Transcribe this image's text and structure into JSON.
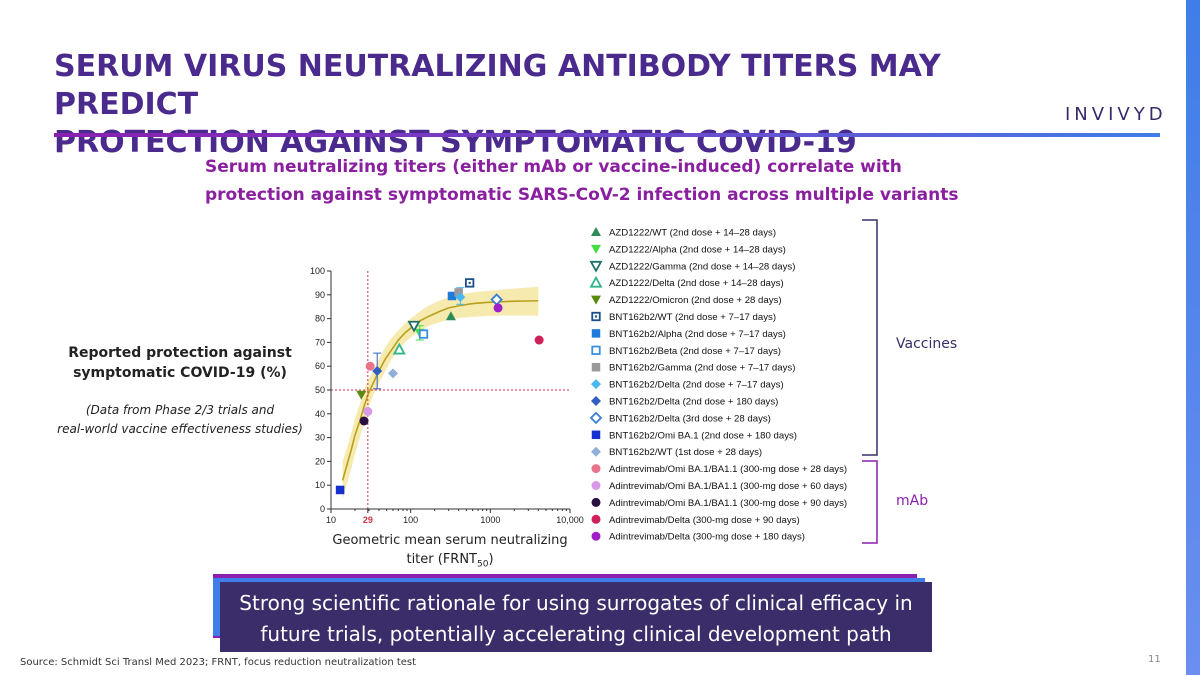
{
  "slide": {
    "title_line1": "SERUM VIRUS NEUTRALIZING ANTIBODY TITERS MAY PREDICT",
    "title_line2": "PROTECTION AGAINST SYMPTOMATIC COVID-19",
    "logo": "INVIVYD",
    "subtitle_line1": "Serum neutralizing titers (either mAb or vaccine-induced) correlate with",
    "subtitle_line2": "protection against symptomatic SARS-CoV-2 infection across multiple variants",
    "left_label_line1": "Reported protection against",
    "left_label_line2": "symptomatic COVID-19 (%)",
    "left_note_line1": "(Data from Phase 2/3 trials and",
    "left_note_line2": "real-world vaccine effectiveness studies)",
    "xlabel_line1": "Geometric mean serum neutralizing",
    "xlabel_line2_prefix": "titer (FRNT",
    "xlabel_sub": "50",
    "xlabel_suffix": ")",
    "bracket_vaccines": "Vaccines",
    "bracket_mab": "mAb",
    "banner_line1": "Strong scientific rationale for using surrogates of clinical efficacy in",
    "banner_line2": "future trials, potentially accelerating clinical development path",
    "source": "Source: Schmidt Sci Transl Med 2023; FRNT, focus reduction neutralization test",
    "page_number": "11"
  },
  "colors": {
    "title": "#4a2a8c",
    "subtitle": "#8a1f9f",
    "vaccines_bracket": "#3a2d6a",
    "mab_bracket": "#8a1fb0",
    "curve": "#b8a020",
    "band": "#f5e6a0",
    "reference_line": "#cc3344"
  },
  "chart_data": {
    "type": "scatter",
    "x_scale": "log",
    "xlim": [
      10,
      10000
    ],
    "ylim": [
      0,
      100
    ],
    "x_ticks": [
      "10",
      "29",
      "100",
      "1000",
      "10,000"
    ],
    "y_ticks": [
      "0",
      "10",
      "20",
      "30",
      "40",
      "50",
      "60",
      "70",
      "80",
      "90",
      "100"
    ],
    "reference": {
      "x": 29,
      "y": 50
    },
    "fit_curve": {
      "x": [
        14,
        16,
        18,
        20,
        23,
        26,
        29,
        34,
        40,
        48,
        58,
        70,
        85,
        100,
        130,
        170,
        230,
        300,
        420,
        600,
        900,
        1400,
        2000,
        2800,
        4000
      ],
      "y": [
        12,
        19,
        25,
        31,
        37,
        43,
        48,
        53,
        58,
        63,
        67,
        71,
        74,
        76,
        79,
        81,
        83,
        84.5,
        85.5,
        86.3,
        86.8,
        87.1,
        87.3,
        87.4,
        87.5
      ],
      "band_low": [
        4,
        11,
        17,
        23,
        30,
        36,
        42,
        48,
        53,
        58,
        63,
        67,
        70,
        72,
        75,
        77,
        78.5,
        79.5,
        80.3,
        80.8,
        81.1,
        81.3,
        81.3,
        81.3,
        81.2
      ],
      "band_high": [
        20,
        26,
        32,
        38,
        44,
        50,
        54,
        58,
        63,
        68,
        72,
        75,
        78,
        80,
        83,
        85.5,
        87.5,
        89,
        90.2,
        91,
        91.6,
        92.2,
        92.6,
        93,
        93.4
      ]
    },
    "series": [
      {
        "name": "AZD1222/WT (2nd dose + 14–28 days)",
        "marker": "triangle-up",
        "color": "#2e8b57",
        "points": [
          [
            320,
            81
          ]
        ]
      },
      {
        "name": "AZD1222/Alpha (2nd dose + 14–28 days)",
        "marker": "triangle-down",
        "color": "#44dd44",
        "points": [
          [
            130,
            74
          ]
        ]
      },
      {
        "name": "AZD1222/Gamma (2nd dose + 14–28 days)",
        "marker": "triangle-down-open",
        "color": "#1f6f6f",
        "points": [
          [
            110,
            77
          ]
        ]
      },
      {
        "name": "AZD1222/Delta (2nd dose + 14–28 days)",
        "marker": "triangle-up-open",
        "color": "#2fb58a",
        "points": [
          [
            72,
            67
          ]
        ]
      },
      {
        "name": "AZD1222/Omicron (2nd dose + 28 days)",
        "marker": "triangle-down",
        "color": "#5a8a10",
        "points": [
          [
            24,
            48
          ]
        ]
      },
      {
        "name": "BNT162b2/WT (2nd dose + 7–17 days)",
        "marker": "square-dot",
        "color": "#1a4f8a",
        "points": [
          [
            550,
            95
          ]
        ]
      },
      {
        "name": "BNT162b2/Alpha (2nd dose + 7–17 days)",
        "marker": "square",
        "color": "#1e7bdc",
        "points": [
          [
            330,
            89.5
          ]
        ]
      },
      {
        "name": "BNT162b2/Beta (2nd dose + 7–17 days)",
        "marker": "square-open",
        "color": "#3a8fe0",
        "points": [
          [
            145,
            73.5
          ]
        ]
      },
      {
        "name": "BNT162b2/Gamma (2nd dose + 7–17 days)",
        "marker": "square",
        "color": "#999999",
        "points": [
          [
            400,
            91
          ]
        ]
      },
      {
        "name": "BNT162b2/Delta (2nd dose + 7–17 days)",
        "marker": "diamond",
        "color": "#4ab8f0",
        "points": [
          [
            420,
            89
          ]
        ]
      },
      {
        "name": "BNT162b2/Delta (2nd dose + 180 days)",
        "marker": "diamond",
        "color": "#2f5fbf",
        "points": [
          [
            38,
            58
          ]
        ]
      },
      {
        "name": "BNT162b2/Delta (3rd dose + 28 days)",
        "marker": "diamond-open",
        "color": "#3a7fd6",
        "points": [
          [
            1200,
            88
          ]
        ]
      },
      {
        "name": "BNT162b2/Omi BA.1 (2nd dose + 180 days)",
        "marker": "square",
        "color": "#1530d0",
        "points": [
          [
            13,
            8
          ]
        ]
      },
      {
        "name": "BNT162b2/WT (1st dose + 28 days)",
        "marker": "diamond",
        "color": "#8fb0d8",
        "points": [
          [
            60,
            57
          ]
        ]
      },
      {
        "name": "Adintrevimab/Omi BA.1/BA1.1 (300-mg dose + 28 days)",
        "marker": "circle",
        "color": "#e8738a",
        "points": [
          [
            31,
            60
          ]
        ]
      },
      {
        "name": "Adintrevimab/Omi BA.1/BA1.1 (300-mg dose + 60 days)",
        "marker": "circle",
        "color": "#d89ae8",
        "points": [
          [
            29,
            41
          ]
        ]
      },
      {
        "name": "Adintrevimab/Omi BA.1/BA1.1 (300-mg dose + 90 days)",
        "marker": "circle",
        "color": "#2a1040",
        "points": [
          [
            26,
            37
          ]
        ]
      },
      {
        "name": "Adintrevimab/Delta (300-mg dose + 90 days)",
        "marker": "circle",
        "color": "#d0205a",
        "points": [
          [
            4100,
            71
          ]
        ]
      },
      {
        "name": "Adintrevimab/Delta (300-mg dose + 180 days)",
        "marker": "circle",
        "color": "#a020c8",
        "points": [
          [
            1250,
            84.5
          ]
        ]
      }
    ],
    "legend_placement": "right"
  }
}
